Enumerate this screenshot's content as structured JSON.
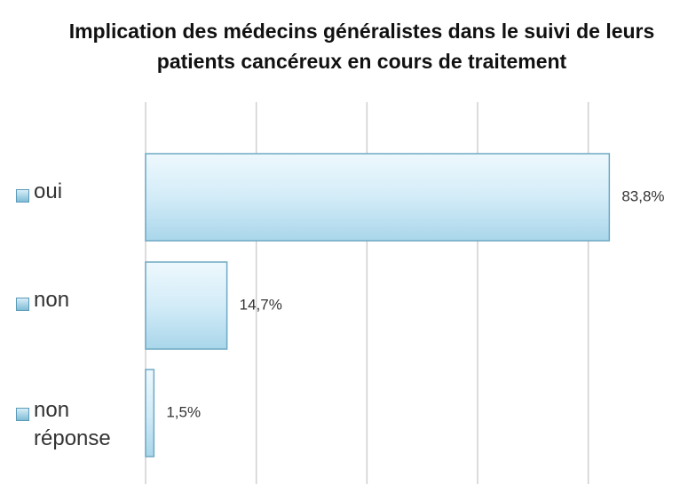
{
  "chart_data": {
    "type": "bar",
    "orientation": "horizontal",
    "title": "Implication des médecins généralistes dans le suivi de leurs patients cancéreux en cours de traitement",
    "categories": [
      "oui",
      "non",
      "non réponse"
    ],
    "values": [
      83.8,
      14.7,
      1.5
    ],
    "value_labels": [
      "83,8%",
      "14,7%",
      "1,5%"
    ],
    "color": "#d3ecf8",
    "xlim": [
      0,
      90
    ],
    "xticks": [
      0,
      20,
      40,
      60,
      80
    ],
    "grid": true
  }
}
